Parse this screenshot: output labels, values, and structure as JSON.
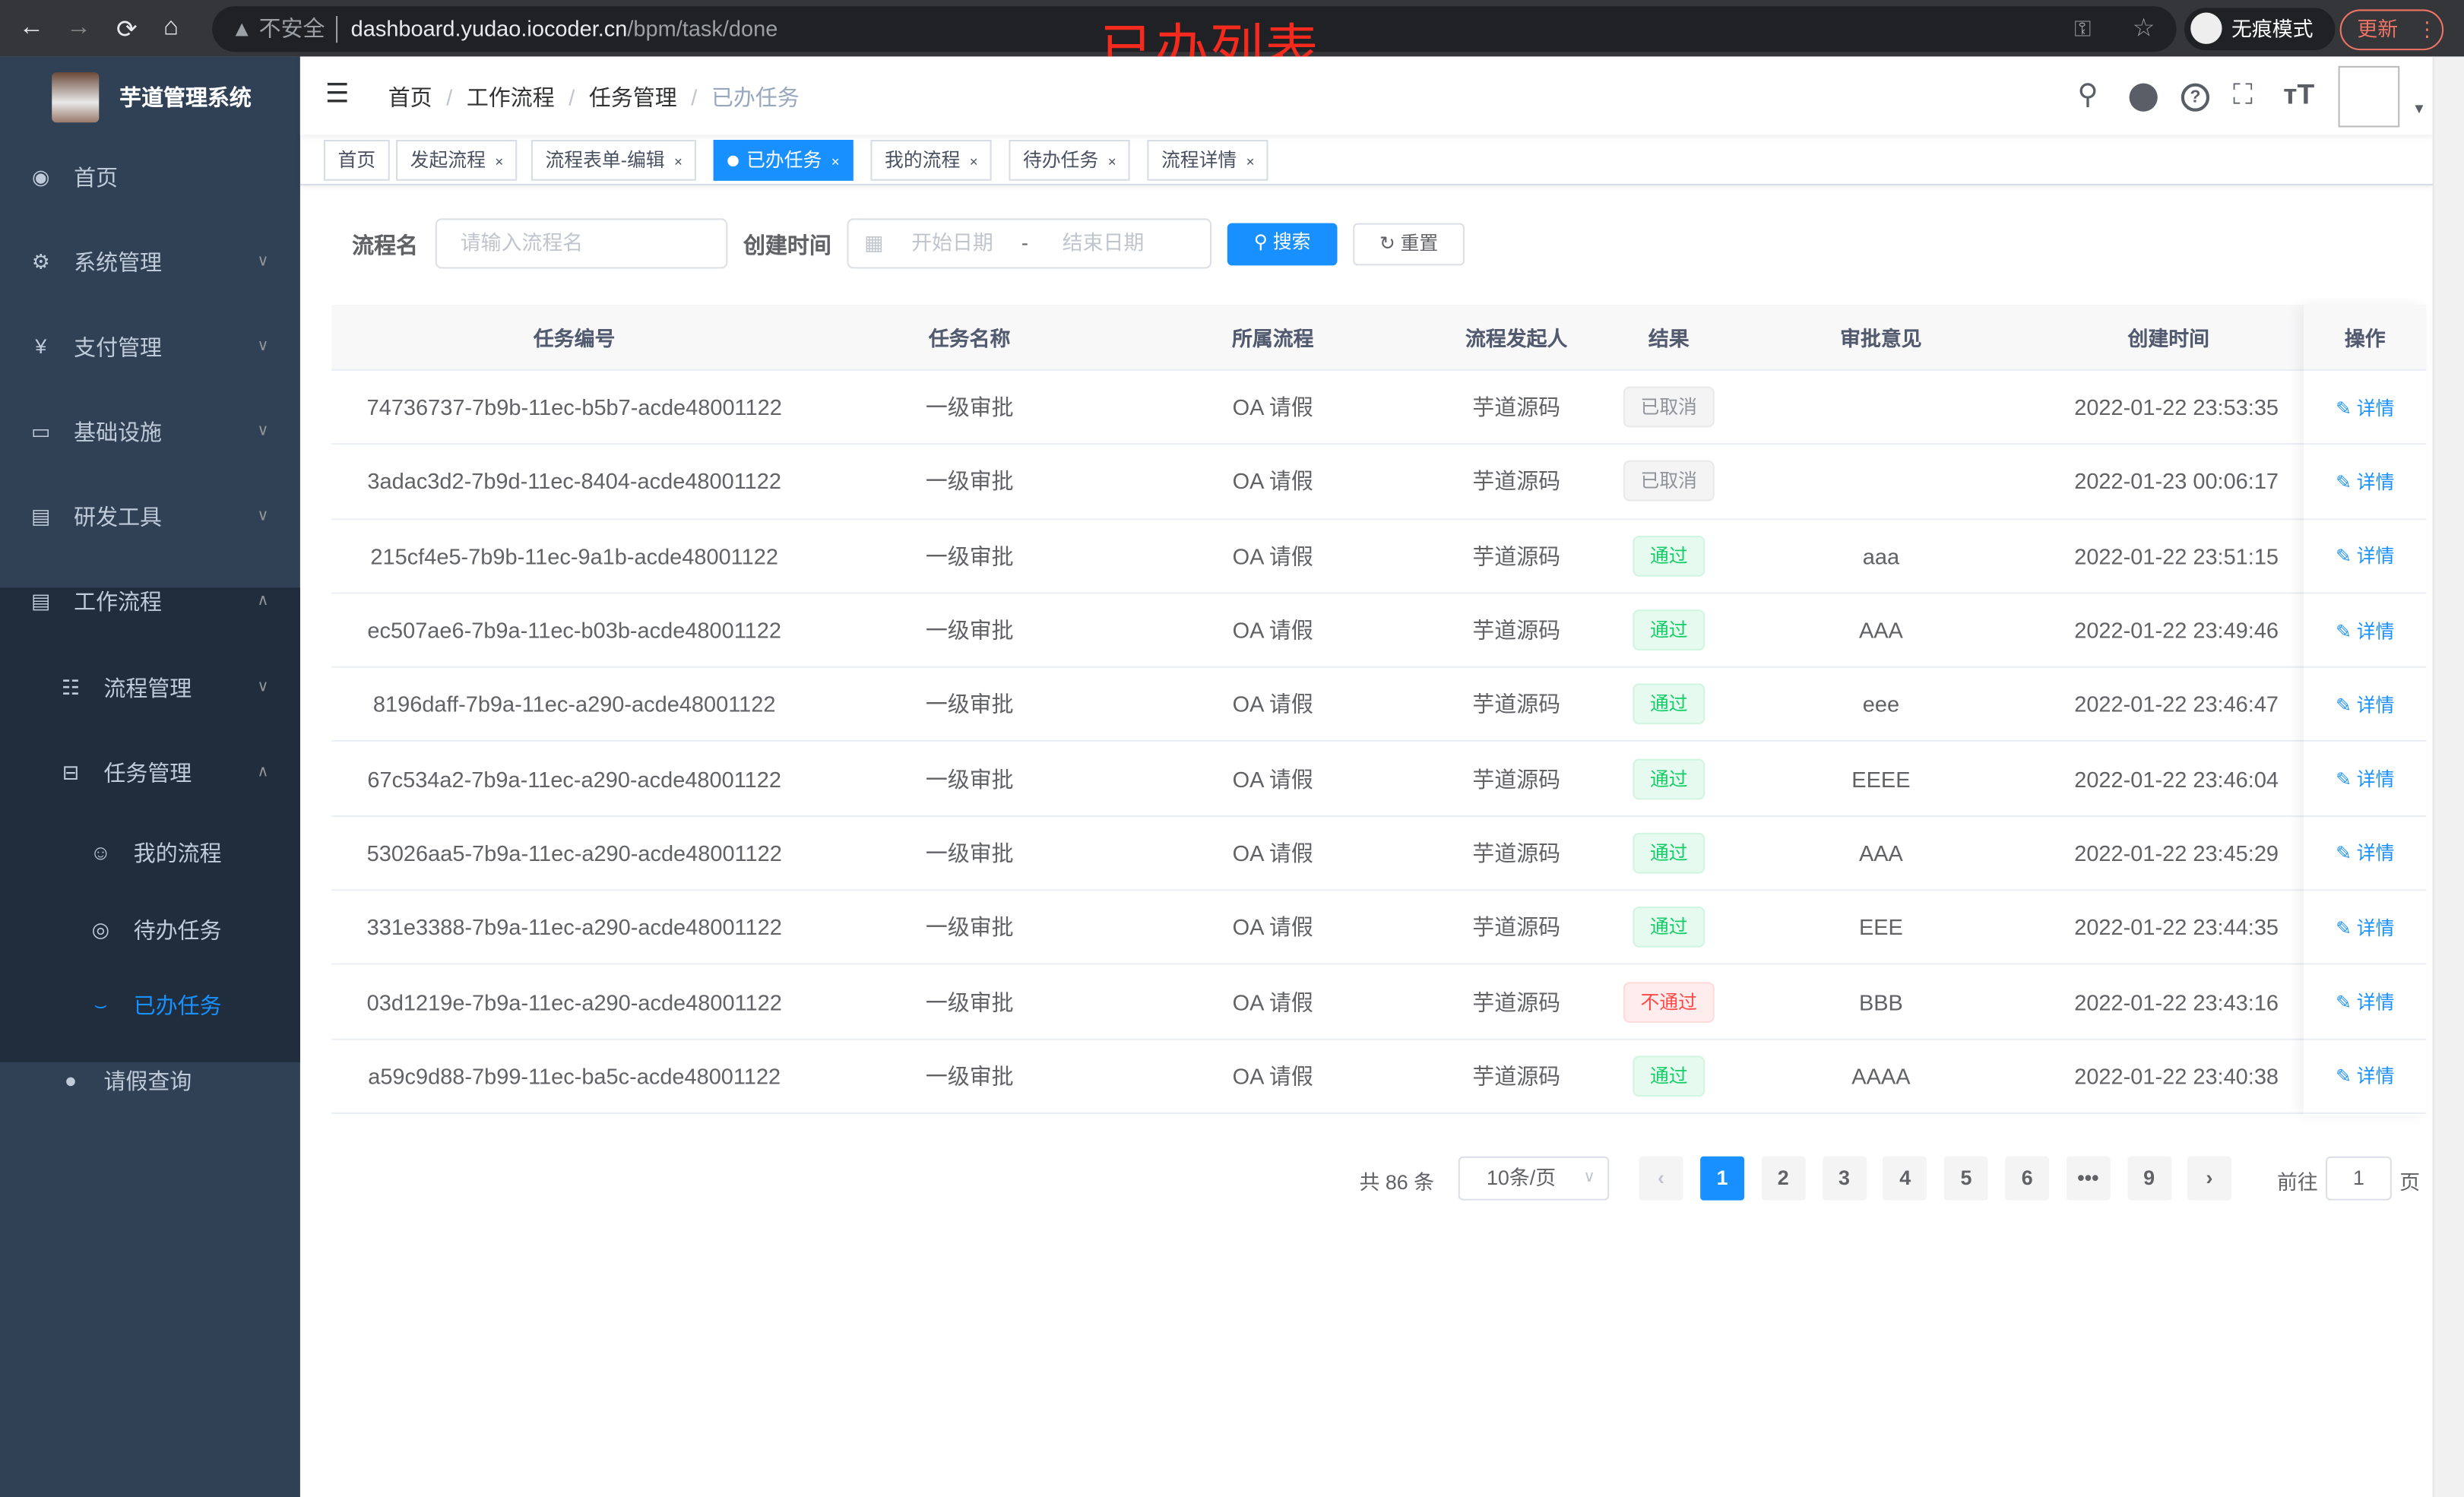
{
  "browser": {
    "back": "←",
    "forward": "→",
    "reload": "⟳",
    "home": "⌂",
    "security": "不安全",
    "url_host": "dashboard.yudao.iocoder.cn",
    "url_path": "/bpm/task/done",
    "incognito": "无痕模式",
    "update": "更新"
  },
  "annotation": "已办列表",
  "sidebar": {
    "title": "芋道管理系统",
    "items": [
      {
        "label": "首页",
        "icon": "dashboard-icon"
      },
      {
        "label": "系统管理",
        "icon": "gear-icon"
      },
      {
        "label": "支付管理",
        "icon": "yen-icon"
      },
      {
        "label": "基础设施",
        "icon": "monitor-icon"
      },
      {
        "label": "研发工具",
        "icon": "toolbox-icon"
      },
      {
        "label": "工作流程",
        "icon": "toolbox-icon"
      },
      {
        "label": "流程管理",
        "icon": "list-icon"
      },
      {
        "label": "任务管理",
        "icon": "tree-icon"
      },
      {
        "label": "我的流程",
        "icon": "people-icon"
      },
      {
        "label": "待办任务",
        "icon": "eye-icon"
      },
      {
        "label": "已办任务",
        "icon": "eye-closed-icon"
      },
      {
        "label": "请假查询",
        "icon": "user-icon"
      }
    ]
  },
  "breadcrumb": [
    "首页",
    "工作流程",
    "任务管理",
    "已办任务"
  ],
  "tags": [
    {
      "label": "首页"
    },
    {
      "label": "发起流程"
    },
    {
      "label": "流程表单-编辑"
    },
    {
      "label": "已办任务",
      "active": true
    },
    {
      "label": "我的流程"
    },
    {
      "label": "待办任务"
    },
    {
      "label": "流程详情"
    }
  ],
  "search": {
    "name_label": "流程名",
    "name_placeholder": "请输入流程名",
    "time_label": "创建时间",
    "start_placeholder": "开始日期",
    "range_sep": "-",
    "end_placeholder": "结束日期",
    "search_btn": "搜索",
    "reset_btn": "重置"
  },
  "table": {
    "columns": [
      "任务编号",
      "任务名称",
      "所属流程",
      "流程发起人",
      "结果",
      "审批意见",
      "创建时间",
      "操作"
    ],
    "rows": [
      {
        "id": "74736737-7b9b-11ec-b5b7-acde48001122",
        "name": "一级审批",
        "process": "OA 请假",
        "starter": "芋道源码",
        "result": "已取消",
        "status": "cancel",
        "comment": "",
        "time": "2022-01-22 23:53:35",
        "action": "详情"
      },
      {
        "id": "3adac3d2-7b9d-11ec-8404-acde48001122",
        "name": "一级审批",
        "process": "OA 请假",
        "starter": "芋道源码",
        "result": "已取消",
        "status": "cancel",
        "comment": "",
        "time": "2022-01-23 00:06:17",
        "action": "详情"
      },
      {
        "id": "215cf4e5-7b9b-11ec-9a1b-acde48001122",
        "name": "一级审批",
        "process": "OA 请假",
        "starter": "芋道源码",
        "result": "通过",
        "status": "pass",
        "comment": "aaa",
        "time": "2022-01-22 23:51:15",
        "action": "详情"
      },
      {
        "id": "ec507ae6-7b9a-11ec-b03b-acde48001122",
        "name": "一级审批",
        "process": "OA 请假",
        "starter": "芋道源码",
        "result": "通过",
        "status": "pass",
        "comment": "AAA",
        "time": "2022-01-22 23:49:46",
        "action": "详情"
      },
      {
        "id": "8196daff-7b9a-11ec-a290-acde48001122",
        "name": "一级审批",
        "process": "OA 请假",
        "starter": "芋道源码",
        "result": "通过",
        "status": "pass",
        "comment": "eee",
        "time": "2022-01-22 23:46:47",
        "action": "详情"
      },
      {
        "id": "67c534a2-7b9a-11ec-a290-acde48001122",
        "name": "一级审批",
        "process": "OA 请假",
        "starter": "芋道源码",
        "result": "通过",
        "status": "pass",
        "comment": "EEEE",
        "time": "2022-01-22 23:46:04",
        "action": "详情"
      },
      {
        "id": "53026aa5-7b9a-11ec-a290-acde48001122",
        "name": "一级审批",
        "process": "OA 请假",
        "starter": "芋道源码",
        "result": "通过",
        "status": "pass",
        "comment": "AAA",
        "time": "2022-01-22 23:45:29",
        "action": "详情"
      },
      {
        "id": "331e3388-7b9a-11ec-a290-acde48001122",
        "name": "一级审批",
        "process": "OA 请假",
        "starter": "芋道源码",
        "result": "通过",
        "status": "pass",
        "comment": "EEE",
        "time": "2022-01-22 23:44:35",
        "action": "详情"
      },
      {
        "id": "03d1219e-7b9a-11ec-a290-acde48001122",
        "name": "一级审批",
        "process": "OA 请假",
        "starter": "芋道源码",
        "result": "不通过",
        "status": "reject",
        "comment": "BBB",
        "time": "2022-01-22 23:43:16",
        "action": "详情"
      },
      {
        "id": "a59c9d88-7b99-11ec-ba5c-acde48001122",
        "name": "一级审批",
        "process": "OA 请假",
        "starter": "芋道源码",
        "result": "通过",
        "status": "pass",
        "comment": "AAAA",
        "time": "2022-01-22 23:40:38",
        "action": "详情"
      }
    ]
  },
  "pagination": {
    "total": "共 86 条",
    "page_size": "10条/页",
    "pages": [
      "1",
      "2",
      "3",
      "4",
      "5",
      "6",
      "•••",
      "9"
    ],
    "current": "1",
    "prev": "‹",
    "next": "›",
    "goto_label": "前往",
    "goto_value": "1",
    "goto_suffix": "页"
  },
  "colors": {
    "primary": "#1890ff",
    "sidebar": "#304156",
    "submenu": "#1f2d3d",
    "pass": "#13ce66",
    "reject": "#ff4949",
    "cancel": "#909399",
    "annotation": "#f32a1d"
  }
}
